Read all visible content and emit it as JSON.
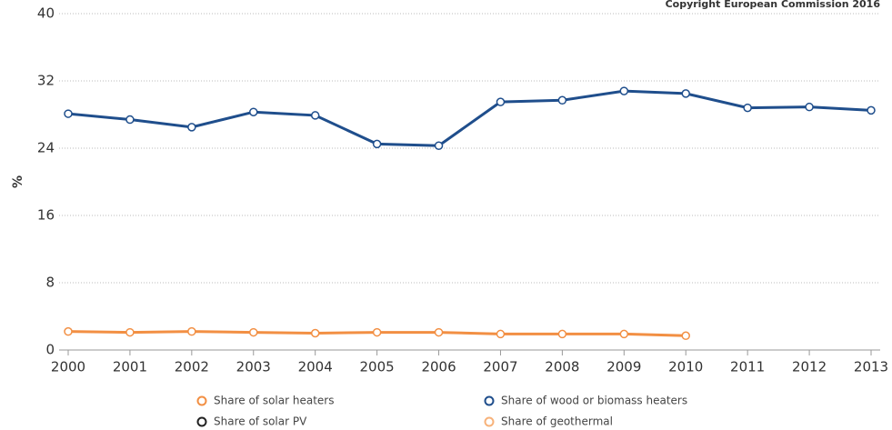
{
  "chart_data": {
    "type": "line",
    "copyright": "Copyright European Commission 2016",
    "y_label": "%",
    "categories": [
      "2000",
      "2001",
      "2002",
      "2003",
      "2004",
      "2005",
      "2006",
      "2007",
      "2008",
      "2009",
      "2010",
      "2011",
      "2012",
      "2013"
    ],
    "ylim": [
      0,
      40
    ],
    "yticks": [
      0,
      8,
      16,
      24,
      32,
      40
    ],
    "grid": true,
    "series": [
      {
        "name": "Share of solar heaters",
        "color": "#f28f43",
        "values": [
          2.2,
          2.1,
          2.2,
          2.1,
          2.0,
          2.1,
          2.1,
          1.9,
          1.9,
          1.9,
          1.7,
          null,
          null,
          null
        ]
      },
      {
        "name": "Share of wood or biomass heaters",
        "color": "#1f4e8c",
        "values": [
          28.1,
          27.4,
          26.5,
          28.3,
          27.9,
          24.5,
          24.3,
          29.5,
          29.7,
          30.8,
          30.5,
          28.8,
          28.9,
          28.5
        ]
      },
      {
        "name": "Share of solar PV",
        "color": "#222222",
        "values": [
          null,
          null,
          null,
          null,
          null,
          null,
          null,
          null,
          null,
          null,
          null,
          null,
          null,
          null
        ]
      },
      {
        "name": "Share of geothermal",
        "color": "#f7b27a",
        "values": [
          null,
          null,
          null,
          null,
          null,
          null,
          null,
          null,
          null,
          null,
          null,
          null,
          null,
          null
        ]
      }
    ]
  }
}
